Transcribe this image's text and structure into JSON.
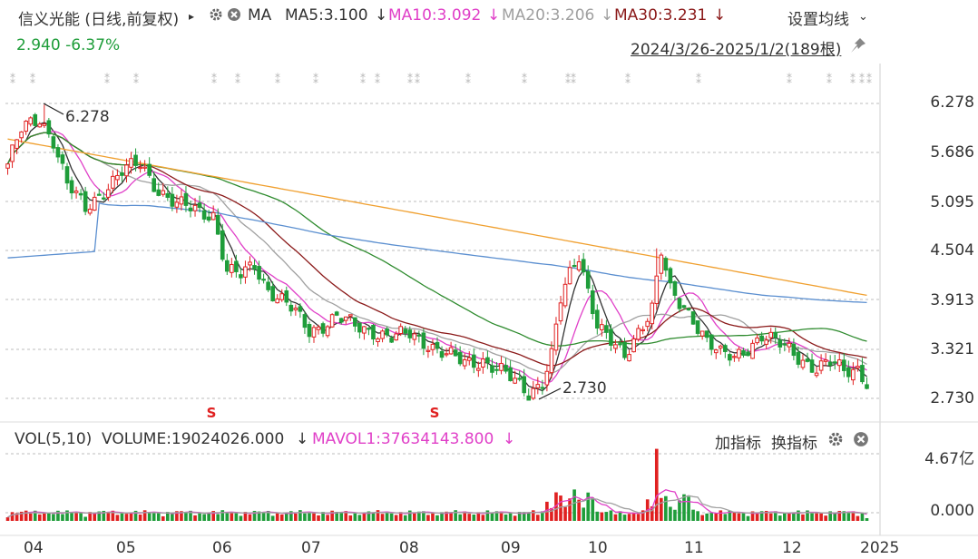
{
  "header": {
    "stock_title": "信义光能 (日线,前复权)",
    "ma_label": "MA",
    "ma5": "MA5:3.100",
    "ma10": "MA10:3.092",
    "ma20": "MA20:3.206",
    "ma30": "MA30:3.231",
    "down_arrow": "↓",
    "settings_label": "设置均线",
    "price_change": "2.940  -6.37%",
    "date_range": "2024/3/26-2025/1/2(189根)",
    "icons": {
      "expand": "triangle-right-icon",
      "gear": "gear-icon",
      "close": "close-icon",
      "chevron": "chevron-down-icon",
      "pin": "pin-icon"
    }
  },
  "colors": {
    "up": "#e02020",
    "down": "#1f9d3a",
    "ma5": "#333333",
    "ma10": "#e040c8",
    "ma20": "#a0a0a0",
    "ma30": "#8b1a1a",
    "ma60": "#2e8b2e",
    "ma120": "#5b8fd0",
    "ma250": "#f0a030",
    "grid": "#bdbdbd",
    "text": "#333333"
  },
  "price_axis": {
    "ticks": [
      "6.278",
      "5.686",
      "5.095",
      "4.504",
      "3.913",
      "3.321",
      "2.730"
    ]
  },
  "annotations": {
    "high": "6.278",
    "low": "2.730",
    "s_marker": "S"
  },
  "volume": {
    "title": "VOL(5,10)",
    "volume_value": "VOLUME:19024026.000",
    "mavol": "MAVOL1:37634143.800",
    "arrow": "↓",
    "add_indicator": "加指标",
    "switch_indicator": "换指标",
    "ticks": [
      "4.67亿",
      "0.000"
    ]
  },
  "x_axis": {
    "labels": [
      "04",
      "05",
      "06",
      "07",
      "08",
      "09",
      "10",
      "11",
      "12",
      "2025"
    ]
  },
  "chart_data": {
    "type": "candlestick",
    "period": "2024/3/26-2025/1/2",
    "bars": 189,
    "price_ylim": [
      2.73,
      6.278
    ],
    "high": 6.278,
    "low": 2.73,
    "last_close": 2.94,
    "change_pct": -6.37,
    "ma": {
      "ma5": 3.1,
      "ma10": 3.092,
      "ma20": 3.206,
      "ma30": 3.231
    },
    "volume": 19024026.0,
    "mavol1": 37634143.8,
    "volume_ylim": [
      0,
      467000000
    ],
    "close_path": [
      [
        0,
        5.55
      ],
      [
        3,
        5.95
      ],
      [
        7,
        6.1
      ],
      [
        10,
        5.85
      ],
      [
        13,
        5.3
      ],
      [
        17,
        5.0
      ],
      [
        21,
        5.25
      ],
      [
        25,
        5.45
      ],
      [
        29,
        5.55
      ],
      [
        33,
        5.25
      ],
      [
        37,
        5.05
      ],
      [
        41,
        5.0
      ],
      [
        45,
        4.95
      ],
      [
        48,
        4.25
      ],
      [
        51,
        4.2
      ],
      [
        54,
        4.35
      ],
      [
        57,
        4.05
      ],
      [
        60,
        3.9
      ],
      [
        63,
        3.75
      ],
      [
        66,
        3.55
      ],
      [
        69,
        3.62
      ],
      [
        72,
        3.7
      ],
      [
        76,
        3.6
      ],
      [
        80,
        3.55
      ],
      [
        84,
        3.45
      ],
      [
        88,
        3.5
      ],
      [
        92,
        3.4
      ],
      [
        96,
        3.25
      ],
      [
        100,
        3.15
      ],
      [
        104,
        3.2
      ],
      [
        108,
        3.05
      ],
      [
        111,
        2.92
      ],
      [
        114,
        2.8
      ],
      [
        117,
        2.95
      ],
      [
        119,
        3.25
      ],
      [
        121,
        3.9
      ],
      [
        123,
        4.2
      ],
      [
        125,
        4.45
      ],
      [
        127,
        4.05
      ],
      [
        129,
        3.65
      ],
      [
        132,
        3.4
      ],
      [
        135,
        3.2
      ],
      [
        138,
        3.55
      ],
      [
        141,
        3.85
      ],
      [
        143,
        4.5
      ],
      [
        145,
        4.0
      ],
      [
        147,
        3.85
      ],
      [
        150,
        3.7
      ],
      [
        153,
        3.45
      ],
      [
        156,
        3.25
      ],
      [
        159,
        3.2
      ],
      [
        162,
        3.35
      ],
      [
        165,
        3.5
      ],
      [
        168,
        3.4
      ],
      [
        171,
        3.3
      ],
      [
        174,
        3.2
      ],
      [
        177,
        3.1
      ],
      [
        180,
        3.15
      ],
      [
        183,
        3.05
      ],
      [
        186,
        3.1
      ],
      [
        188,
        2.94
      ]
    ]
  }
}
